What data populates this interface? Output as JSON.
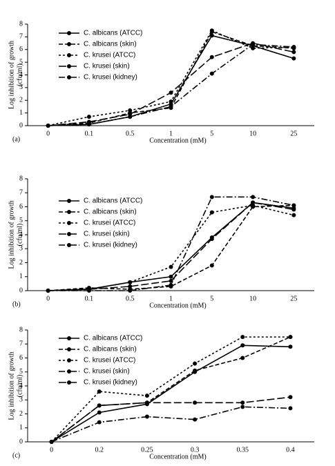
{
  "chart_data": [
    {
      "type": "line",
      "panel": "(a)",
      "xlabel": "Concentration (mM)",
      "ylabel": [
        "Log inhibition of growth",
        "(cfu/ml)"
      ],
      "categories": [
        "0",
        "0.1",
        "0.5",
        "1",
        "5",
        "10",
        "25"
      ],
      "ylim": [
        0,
        8
      ],
      "yticks": [
        0,
        1,
        2,
        3,
        4,
        5,
        6,
        7,
        8
      ],
      "grid": false,
      "series": [
        {
          "name": "C. albicans (ATCC)",
          "color": "#000000",
          "dash": "solid",
          "values": [
            0,
            0.1,
            0.7,
            1.7,
            7.1,
            6.3,
            5.3
          ]
        },
        {
          "name": "C. albicans (skin)",
          "color": "#000000",
          "dash": "dashed",
          "values": [
            0,
            0.2,
            1.0,
            1.4,
            7.4,
            6.3,
            6.1
          ]
        },
        {
          "name": "C. krusei (ATCC)",
          "color": "#000000",
          "dash": "dotted",
          "values": [
            0,
            0.7,
            1.2,
            1.9,
            7.5,
            6.1,
            6.2
          ]
        },
        {
          "name": "C. krusei (skin)",
          "color": "#000000",
          "dash": "longdash",
          "values": [
            0,
            0.3,
            0.9,
            2.6,
            5.4,
            6.5,
            5.8
          ]
        },
        {
          "name": "C. krusei (kidney)",
          "color": "#000000",
          "dash": "dashdot",
          "values": [
            0,
            0.1,
            0.7,
            1.5,
            4.1,
            6.4,
            6.2
          ]
        }
      ]
    },
    {
      "type": "line",
      "panel": "(b)",
      "xlabel": "Concentration (mM)",
      "ylabel": [
        "Log inhibition of growth",
        "(cfu/ml)"
      ],
      "categories": [
        "0",
        "0.1",
        "0.5",
        "1",
        "5",
        "10",
        "25"
      ],
      "ylim": [
        0,
        8
      ],
      "yticks": [
        0,
        1,
        2,
        3,
        4,
        5,
        6,
        7,
        8
      ],
      "grid": false,
      "series": [
        {
          "name": "C. albicans (ATCC)",
          "color": "#000000",
          "dash": "solid",
          "values": [
            0,
            0.1,
            0.6,
            1.0,
            3.8,
            6.3,
            5.9
          ]
        },
        {
          "name": "C. albicans (skin)",
          "color": "#000000",
          "dash": "dashed",
          "values": [
            0,
            0.2,
            0.1,
            0.3,
            1.8,
            6.0,
            6.1
          ]
        },
        {
          "name": "C. krusei (ATCC)",
          "color": "#000000",
          "dash": "dotted",
          "values": [
            0,
            0.1,
            0.6,
            1.7,
            5.6,
            6.1,
            5.4
          ]
        },
        {
          "name": "C. krusei (skin)",
          "color": "#000000",
          "dash": "longdash",
          "values": [
            0,
            0.1,
            0.3,
            0.7,
            3.7,
            6.3,
            5.8
          ]
        },
        {
          "name": "C. krusei (kidney)",
          "color": "#000000",
          "dash": "dashdot",
          "values": [
            0,
            0.0,
            0.0,
            0.4,
            6.7,
            6.7,
            6.1
          ]
        }
      ]
    },
    {
      "type": "line",
      "panel": "(c)",
      "xlabel": "Concentration (mM)",
      "ylabel": [
        "Log inhibition of growth",
        "(cfu/ml)"
      ],
      "categories": [
        "0",
        "0.2",
        "0.25",
        "0.3",
        "0.35",
        "0.4"
      ],
      "ylim": [
        0,
        8
      ],
      "yticks": [
        0,
        1,
        2,
        3,
        4,
        5,
        6,
        7,
        8
      ],
      "grid": false,
      "series": [
        {
          "name": "C. albicans (ATCC)",
          "color": "#000000",
          "dash": "solid",
          "values": [
            0,
            2.1,
            2.7,
            5.0,
            6.9,
            6.8
          ]
        },
        {
          "name": "C. albicans (skin)",
          "color": "#000000",
          "dash": "dashed",
          "values": [
            0,
            2.6,
            2.8,
            5.1,
            6.0,
            7.5
          ]
        },
        {
          "name": "C. krusei (ATCC)",
          "color": "#000000",
          "dash": "dotted",
          "values": [
            0,
            3.6,
            3.3,
            5.6,
            7.5,
            7.5
          ]
        },
        {
          "name": "C. krusei (skin)",
          "color": "#000000",
          "dash": "dashdot",
          "values": [
            0,
            1.4,
            1.8,
            1.6,
            2.5,
            2.4
          ]
        },
        {
          "name": "C. krusei (kidney)",
          "color": "#000000",
          "dash": "longdash",
          "values": [
            0,
            2.6,
            2.8,
            2.8,
            2.8,
            3.2
          ]
        }
      ]
    }
  ]
}
